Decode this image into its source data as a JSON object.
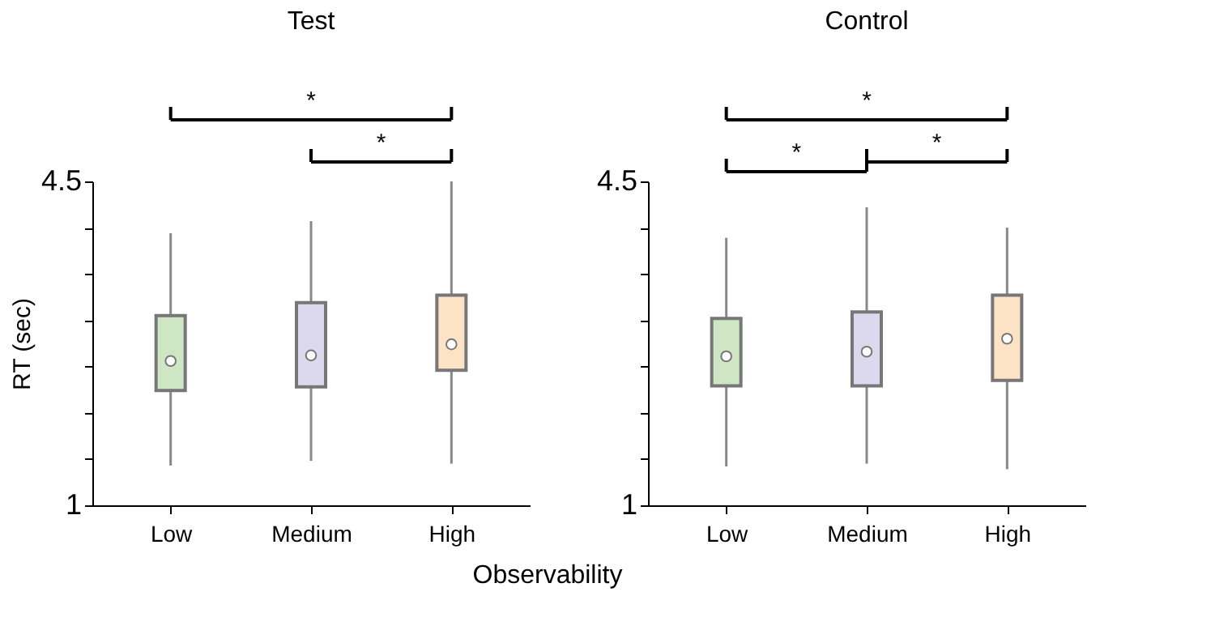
{
  "chart_data": [
    {
      "type": "box",
      "title": "Test",
      "xlabel": "Observability",
      "ylabel": "RT (sec)",
      "categories": [
        "Low",
        "Medium",
        "High"
      ],
      "colors": [
        "#cfe6c4",
        "#dcd8ee",
        "#fde3c6"
      ],
      "boxes": [
        {
          "low": 1.43,
          "q1": 2.24,
          "median": 2.56,
          "q3": 3.05,
          "high": 3.94
        },
        {
          "low": 1.48,
          "q1": 2.28,
          "median": 2.62,
          "q3": 3.19,
          "high": 4.07
        },
        {
          "low": 1.45,
          "q1": 2.46,
          "median": 2.74,
          "q3": 3.27,
          "high": 4.5
        }
      ],
      "ylim": [
        1,
        4.5
      ],
      "yticks": [
        1,
        {
          "value": 1.5,
          "label": null
        },
        {
          "value": 2,
          "label": null
        },
        {
          "value": 2.5,
          "label": null
        },
        {
          "value": 3,
          "label": null
        },
        {
          "value": 3.5,
          "label": null
        },
        {
          "value": 4,
          "label": null
        },
        4.5
      ],
      "annotations": [
        "*",
        "*"
      ],
      "grid": false
    },
    {
      "type": "box",
      "title": "Control",
      "categories": [
        "Low",
        "Medium",
        "High"
      ],
      "colors": [
        "#cfe6c4",
        "#dcd8ee",
        "#fde3c6"
      ],
      "boxes": [
        {
          "low": 1.42,
          "q1": 2.29,
          "median": 2.61,
          "q3": 3.02,
          "high": 3.89
        },
        {
          "low": 1.45,
          "q1": 2.29,
          "median": 2.66,
          "q3": 3.09,
          "high": 4.22
        },
        {
          "low": 1.39,
          "q1": 2.35,
          "median": 2.8,
          "q3": 3.27,
          "high": 4.0
        }
      ],
      "ylim": [
        1,
        4.5
      ],
      "yticks": [
        1,
        {
          "value": 1.5,
          "label": null
        },
        {
          "value": 2,
          "label": null
        },
        {
          "value": 2.5,
          "label": null
        },
        {
          "value": 3,
          "label": null
        },
        {
          "value": 3.5,
          "label": null
        },
        {
          "value": 4,
          "label": null
        },
        4.5
      ],
      "annotations": [
        "*",
        "*",
        "*"
      ],
      "grid": false
    }
  ]
}
